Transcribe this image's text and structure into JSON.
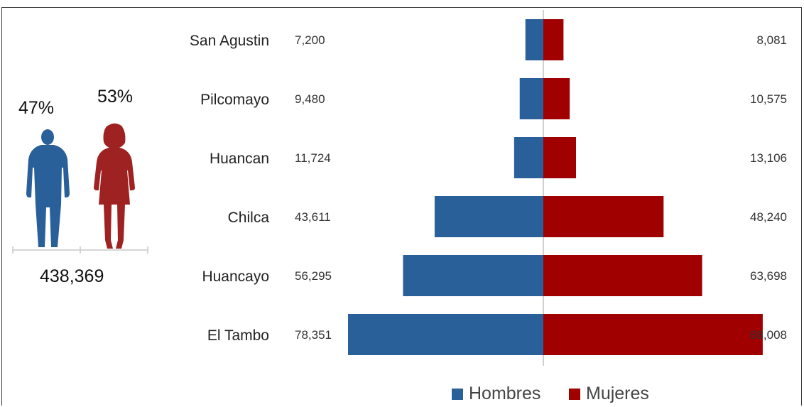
{
  "summary": {
    "men_percent": "47%",
    "women_percent": "53%",
    "total": "438,369",
    "men_icon": "man-silhouette-icon",
    "women_icon": "woman-silhouette-icon"
  },
  "colors": {
    "hombres": "#2a6099",
    "mujeres": "#a00000",
    "figure_women": "#9e2222",
    "axis": "#c0c0c0"
  },
  "chart_data": {
    "type": "bar",
    "orientation": "horizontal-diverging",
    "categories": [
      "San Agustin",
      "Pilcomayo",
      "Huancan",
      "Chilca",
      "Huancayo",
      "El Tambo"
    ],
    "series": [
      {
        "name": "Hombres",
        "values": [
          7200,
          9480,
          11724,
          43611,
          56295,
          78351
        ],
        "labels": [
          "7,200",
          "9,480",
          "11,724",
          "43,611",
          "56,295",
          "78,351"
        ]
      },
      {
        "name": "Mujeres",
        "values": [
          8081,
          10575,
          13106,
          48240,
          63698,
          88008
        ],
        "labels": [
          "8,081",
          "10,575",
          "13,106",
          "48,240",
          "63,698",
          "88,008"
        ]
      }
    ],
    "legend_position": "bottom",
    "grid": false
  }
}
